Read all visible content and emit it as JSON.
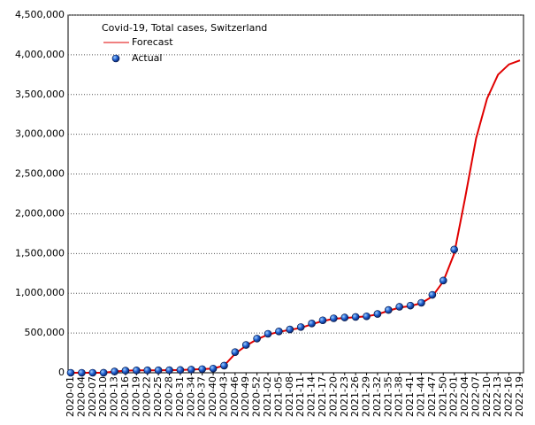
{
  "chart_data": {
    "type": "line",
    "title": "Covid-19, Total cases, Switzerland",
    "categories": [
      "2020-01",
      "2020-04",
      "2020-07",
      "2020-10",
      "2020-13",
      "2020-16",
      "2020-19",
      "2020-22",
      "2020-25",
      "2020-28",
      "2020-31",
      "2020-34",
      "2020-37",
      "2020-40",
      "2020-43",
      "2020-46",
      "2020-49",
      "2020-52",
      "2021-02",
      "2021-05",
      "2021-08",
      "2021-11",
      "2021-14",
      "2021-17",
      "2021-20",
      "2021-23",
      "2021-26",
      "2021-29",
      "2021-32",
      "2021-35",
      "2021-38",
      "2021-41",
      "2021-44",
      "2021-47",
      "2021-50",
      "2022-01",
      "2022-04",
      "2022-07",
      "2022-10",
      "2022-13",
      "2022-16",
      "2022-19"
    ],
    "series": [
      {
        "name": "Forecast",
        "color": "#e00000",
        "style": "line",
        "values": [
          0,
          0,
          0,
          500,
          16000,
          27000,
          30000,
          31000,
          31500,
          33000,
          35000,
          40000,
          46000,
          53000,
          90000,
          240000,
          340000,
          420000,
          480000,
          515000,
          540000,
          565000,
          610000,
          650000,
          680000,
          690000,
          700000,
          710000,
          735000,
          780000,
          820000,
          840000,
          875000,
          960000,
          1150000,
          1500000,
          2200000,
          2950000,
          3450000,
          3750000,
          3880000,
          3930000
        ]
      },
      {
        "name": "Actual",
        "color": "#1f5fd0",
        "style": "marker",
        "values": [
          0,
          0,
          0,
          500,
          16000,
          27000,
          30000,
          31000,
          31500,
          33000,
          35000,
          40000,
          46000,
          53000,
          90000,
          260000,
          350000,
          430000,
          490000,
          520000,
          545000,
          575000,
          620000,
          660000,
          685000,
          695000,
          702000,
          710000,
          740000,
          790000,
          830000,
          845000,
          880000,
          980000,
          1160000,
          1550000,
          null,
          null,
          null,
          null,
          null,
          null
        ]
      }
    ],
    "ylim": [
      0,
      4500000
    ],
    "yticks": [
      {
        "value": 0,
        "label": "0"
      },
      {
        "value": 500000,
        "label": "500,000"
      },
      {
        "value": 1000000,
        "label": "1,000,000"
      },
      {
        "value": 1500000,
        "label": "1,500,000"
      },
      {
        "value": 2000000,
        "label": "2,000,000"
      },
      {
        "value": 2500000,
        "label": "2,500,000"
      },
      {
        "value": 3000000,
        "label": "3,000,000"
      },
      {
        "value": 3500000,
        "label": "3,500,000"
      },
      {
        "value": 4000000,
        "label": "4,000,000"
      },
      {
        "value": 4500000,
        "label": "4,500,000"
      }
    ],
    "grid": true
  }
}
